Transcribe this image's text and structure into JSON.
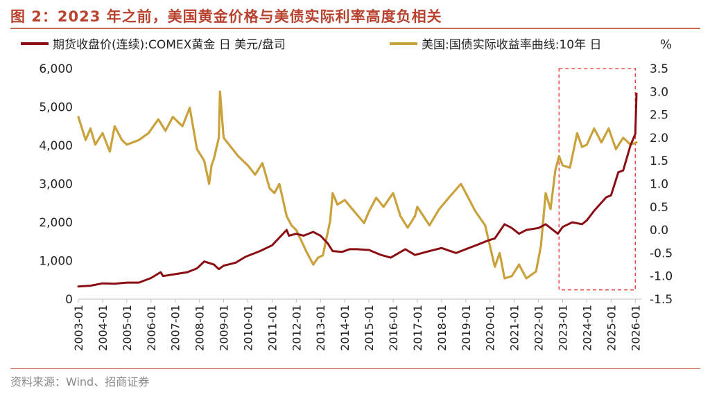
{
  "figure": {
    "title": "图 2：2023 年之前，美国黄金价格与美债实际利率高度负相关",
    "source": "资料来源：Wind、招商证券"
  },
  "chart_data": {
    "type": "line",
    "title": "",
    "legend_position": "top",
    "grid": false,
    "x_ticks": [
      "2003-01",
      "2004-01",
      "2005-01",
      "2006-01",
      "2007-01",
      "2008-01",
      "2009-01",
      "2010-01",
      "2011-01",
      "2012-01",
      "2013-01",
      "2014-01",
      "2015-01",
      "2016-01",
      "2017-01",
      "2018-01",
      "2019-01",
      "2020-01",
      "2021-01",
      "2022-01",
      "2023-01",
      "2024-01",
      "2025-01",
      "2026-01"
    ],
    "x_range": [
      2003.0,
      2026.25
    ],
    "left_axis": {
      "ylim": [
        0,
        6000
      ],
      "ticks": [
        "0",
        "1,000",
        "2,000",
        "3,000",
        "4,000",
        "5,000",
        "6,000"
      ]
    },
    "right_axis": {
      "ylim": [
        -1.5,
        3.5
      ],
      "unit_label": "%",
      "ticks": [
        "-1.5",
        "-1.0",
        "-0.5",
        "0.0",
        "0.5",
        "1.0",
        "1.5",
        "2.0",
        "2.5",
        "3.0",
        "3.5"
      ]
    },
    "highlight_box": {
      "x_range": [
        2022.85,
        2026.0
      ],
      "y_right_range": [
        -1.3,
        3.5
      ],
      "color": "#e0342c"
    },
    "series": [
      {
        "name": "期货收盘价(连续):COMEX黄金 日 美元/盘司",
        "axis": "left",
        "color": "#8b0d14",
        "x": [
          2003.0,
          2003.5,
          2004.0,
          2004.5,
          2005.0,
          2005.5,
          2006.0,
          2006.4,
          2006.5,
          2007.0,
          2007.5,
          2007.9,
          2008.2,
          2008.6,
          2008.8,
          2009.0,
          2009.5,
          2009.9,
          2010.5,
          2011.0,
          2011.6,
          2011.7,
          2012.0,
          2012.3,
          2012.7,
          2013.0,
          2013.3,
          2013.5,
          2013.9,
          2014.2,
          2014.5,
          2015.0,
          2015.5,
          2015.9,
          2016.5,
          2016.9,
          2017.5,
          2018.0,
          2018.6,
          2019.0,
          2019.5,
          2019.9,
          2020.2,
          2020.6,
          2020.9,
          2021.2,
          2021.5,
          2022.0,
          2022.3,
          2022.8,
          2023.0,
          2023.4,
          2023.8,
          2024.0,
          2024.3,
          2024.8,
          2025.0,
          2025.3,
          2025.5,
          2025.8,
          2026.0,
          2026.05
        ],
        "values": [
          330,
          350,
          410,
          400,
          430,
          430,
          550,
          700,
          600,
          650,
          700,
          800,
          980,
          900,
          780,
          870,
          950,
          1100,
          1250,
          1400,
          1800,
          1650,
          1700,
          1650,
          1750,
          1650,
          1450,
          1250,
          1230,
          1300,
          1300,
          1280,
          1150,
          1080,
          1300,
          1150,
          1250,
          1330,
          1200,
          1300,
          1420,
          1520,
          1580,
          1950,
          1850,
          1700,
          1800,
          1850,
          1950,
          1700,
          1880,
          2000,
          1950,
          2050,
          2300,
          2650,
          2700,
          3300,
          3350,
          4000,
          4300,
          5350
        ]
      },
      {
        "name": "美国:国债实际收益率曲线:10年 日",
        "axis": "right",
        "color": "#c9a23c",
        "x": [
          2003.0,
          2003.3,
          2003.5,
          2003.7,
          2004.0,
          2004.3,
          2004.5,
          2004.8,
          2005.0,
          2005.5,
          2005.9,
          2006.3,
          2006.6,
          2006.9,
          2007.3,
          2007.6,
          2007.9,
          2008.2,
          2008.4,
          2008.5,
          2008.6,
          2008.8,
          2008.85,
          2009.0,
          2009.3,
          2009.6,
          2010.0,
          2010.3,
          2010.6,
          2010.9,
          2011.1,
          2011.3,
          2011.6,
          2011.8,
          2012.0,
          2012.4,
          2012.7,
          2012.9,
          2013.1,
          2013.4,
          2013.5,
          2013.7,
          2014.0,
          2014.4,
          2014.8,
          2015.0,
          2015.3,
          2015.6,
          2016.0,
          2016.3,
          2016.6,
          2016.9,
          2017.0,
          2017.5,
          2017.9,
          2018.3,
          2018.8,
          2019.0,
          2019.4,
          2019.8,
          2020.0,
          2020.2,
          2020.4,
          2020.6,
          2020.9,
          2021.2,
          2021.5,
          2021.9,
          2022.1,
          2022.3,
          2022.5,
          2022.7,
          2022.85,
          2023.0,
          2023.3,
          2023.6,
          2023.8,
          2024.0,
          2024.3,
          2024.6,
          2024.9,
          2025.2,
          2025.5,
          2025.8,
          2026.05
        ],
        "values": [
          2.45,
          1.95,
          2.2,
          1.85,
          2.1,
          1.7,
          2.25,
          1.95,
          1.85,
          1.95,
          2.1,
          2.4,
          2.15,
          2.45,
          2.25,
          2.65,
          1.75,
          1.5,
          1.0,
          1.4,
          1.55,
          2.0,
          3.0,
          2.0,
          1.8,
          1.6,
          1.4,
          1.2,
          1.45,
          0.9,
          0.8,
          1.0,
          0.3,
          0.1,
          0.0,
          -0.45,
          -0.75,
          -0.6,
          -0.55,
          0.2,
          0.8,
          0.55,
          0.65,
          0.4,
          0.15,
          0.4,
          0.7,
          0.5,
          0.8,
          0.3,
          0.05,
          0.3,
          0.5,
          0.1,
          0.45,
          0.7,
          1.0,
          0.8,
          0.4,
          0.1,
          -0.35,
          -0.8,
          -0.5,
          -1.05,
          -1.0,
          -0.75,
          -1.05,
          -0.9,
          -0.35,
          0.8,
          0.45,
          1.3,
          1.6,
          1.4,
          1.35,
          2.1,
          1.8,
          1.85,
          2.2,
          1.9,
          2.2,
          1.75,
          2.0,
          1.85,
          1.9
        ]
      }
    ]
  }
}
